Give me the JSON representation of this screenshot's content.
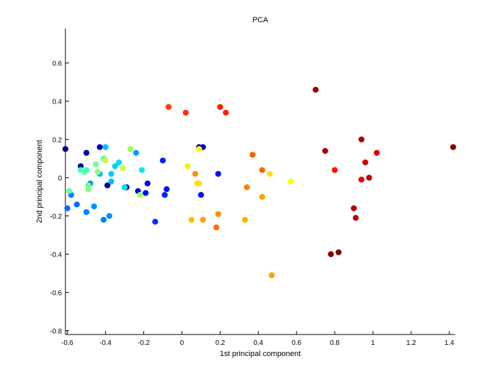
{
  "chart_data": {
    "type": "scatter",
    "title": "PCA",
    "xlabel": "1st principal component",
    "ylabel": "2nd principal component",
    "xlim": [
      -0.61,
      1.43
    ],
    "ylim": [
      -0.82,
      0.78
    ],
    "xticks": [
      -0.6,
      -0.4,
      -0.2,
      0,
      0.2,
      0.4,
      0.6,
      0.8,
      1,
      1.2,
      1.4
    ],
    "xtick_labels": [
      "-0.6",
      "-0.4",
      "-0.2",
      "0",
      "0.2",
      "0.4",
      "0.6",
      "0.8",
      "1",
      "1.2",
      "1.4"
    ],
    "yticks": [
      -0.8,
      -0.6,
      -0.4,
      -0.2,
      0,
      0.2,
      0.4,
      0.6
    ],
    "ytick_labels": [
      "-0.8",
      "-0.6",
      "-0.4",
      "-0.2",
      "0",
      "0.2",
      "0.4",
      "0.6"
    ],
    "grid": false,
    "legend": "none",
    "colormap": "jet",
    "points": [
      {
        "x": -0.61,
        "y": 0.15,
        "color": "#00008f"
      },
      {
        "x": -0.53,
        "y": 0.06,
        "color": "#00008f"
      },
      {
        "x": -0.5,
        "y": 0.13,
        "color": "#0000b0"
      },
      {
        "x": -0.43,
        "y": 0.16,
        "color": "#0000b0"
      },
      {
        "x": -0.39,
        "y": -0.04,
        "color": "#0000a0"
      },
      {
        "x": -0.29,
        "y": -0.05,
        "color": "#0000cc"
      },
      {
        "x": -0.23,
        "y": -0.07,
        "color": "#0000e0"
      },
      {
        "x": -0.19,
        "y": -0.08,
        "color": "#0010f0"
      },
      {
        "x": -0.18,
        "y": -0.03,
        "color": "#0000e0"
      },
      {
        "x": -0.14,
        "y": -0.23,
        "color": "#0030ff"
      },
      {
        "x": -0.1,
        "y": 0.09,
        "color": "#0020ff"
      },
      {
        "x": -0.08,
        "y": -0.06,
        "color": "#0010f0"
      },
      {
        "x": -0.09,
        "y": -0.09,
        "color": "#0020ff"
      },
      {
        "x": 0.09,
        "y": 0.16,
        "color": "#0000b0"
      },
      {
        "x": 0.11,
        "y": 0.16,
        "color": "#0000d0"
      },
      {
        "x": 0.1,
        "y": -0.09,
        "color": "#0010f0"
      },
      {
        "x": 0.19,
        "y": 0.02,
        "color": "#0010f0"
      },
      {
        "x": -0.6,
        "y": -0.16,
        "color": "#0070ff"
      },
      {
        "x": -0.58,
        "y": -0.09,
        "color": "#0080ff"
      },
      {
        "x": -0.55,
        "y": -0.14,
        "color": "#0070ff"
      },
      {
        "x": -0.5,
        "y": -0.18,
        "color": "#0080ff"
      },
      {
        "x": -0.48,
        "y": -0.03,
        "color": "#0090ff"
      },
      {
        "x": -0.46,
        "y": -0.15,
        "color": "#0090ff"
      },
      {
        "x": -0.41,
        "y": -0.22,
        "color": "#0080ff"
      },
      {
        "x": -0.38,
        "y": -0.2,
        "color": "#0090ff"
      },
      {
        "x": -0.43,
        "y": 0.02,
        "color": "#00b0ff"
      },
      {
        "x": -0.4,
        "y": 0.16,
        "color": "#00c0ff"
      },
      {
        "x": -0.37,
        "y": -0.02,
        "color": "#00c0ff"
      },
      {
        "x": -0.37,
        "y": 0.02,
        "color": "#00d0ff"
      },
      {
        "x": -0.35,
        "y": 0.06,
        "color": "#00d0ff"
      },
      {
        "x": -0.33,
        "y": 0.08,
        "color": "#00e0ff"
      },
      {
        "x": -0.3,
        "y": -0.05,
        "color": "#00e0f0"
      },
      {
        "x": -0.24,
        "y": 0.13,
        "color": "#00a0ff"
      },
      {
        "x": -0.21,
        "y": 0.04,
        "color": "#00e8f0"
      },
      {
        "x": -0.59,
        "y": -0.07,
        "color": "#60ffa0"
      },
      {
        "x": -0.53,
        "y": 0.04,
        "color": "#40ffc0"
      },
      {
        "x": -0.51,
        "y": 0.03,
        "color": "#60ffa0"
      },
      {
        "x": -0.5,
        "y": 0.04,
        "color": "#40ffc0"
      },
      {
        "x": -0.49,
        "y": -0.04,
        "color": "#60ffa0"
      },
      {
        "x": -0.49,
        "y": -0.06,
        "color": "#80ff80"
      },
      {
        "x": -0.45,
        "y": 0.07,
        "color": "#70ff90"
      },
      {
        "x": -0.44,
        "y": 0.03,
        "color": "#80ff80"
      },
      {
        "x": -0.41,
        "y": 0.1,
        "color": "#60ffa0"
      },
      {
        "x": -0.4,
        "y": 0.09,
        "color": "#c0ff40"
      },
      {
        "x": -0.31,
        "y": 0.05,
        "color": "#d0ff30"
      },
      {
        "x": -0.27,
        "y": 0.15,
        "color": "#a0ff60"
      },
      {
        "x": -0.22,
        "y": -0.09,
        "color": "#a0ff60"
      },
      {
        "x": 0.03,
        "y": 0.06,
        "color": "#f0f010"
      },
      {
        "x": 0.08,
        "y": -0.03,
        "color": "#ffe000"
      },
      {
        "x": 0.09,
        "y": -0.03,
        "color": "#ffe000"
      },
      {
        "x": 0.09,
        "y": 0.15,
        "color": "#ffff00"
      },
      {
        "x": 0.46,
        "y": 0.02,
        "color": "#ffe000"
      },
      {
        "x": 0.57,
        "y": -0.02,
        "color": "#ffff00"
      },
      {
        "x": 0.05,
        "y": -0.22,
        "color": "#ffc000"
      },
      {
        "x": 0.07,
        "y": 0.02,
        "color": "#ff9000"
      },
      {
        "x": 0.11,
        "y": -0.22,
        "color": "#ffa000"
      },
      {
        "x": 0.19,
        "y": -0.19,
        "color": "#ff9000"
      },
      {
        "x": 0.18,
        "y": -0.26,
        "color": "#ff7000"
      },
      {
        "x": 0.33,
        "y": -0.22,
        "color": "#ffb000"
      },
      {
        "x": 0.34,
        "y": -0.05,
        "color": "#ff8000"
      },
      {
        "x": 0.37,
        "y": 0.12,
        "color": "#ff6000"
      },
      {
        "x": 0.42,
        "y": 0.04,
        "color": "#ff6000"
      },
      {
        "x": 0.42,
        "y": -0.1,
        "color": "#ffa000"
      },
      {
        "x": 0.47,
        "y": -0.51,
        "color": "#ffa000"
      },
      {
        "x": -0.07,
        "y": 0.37,
        "color": "#ff4000"
      },
      {
        "x": 0.02,
        "y": 0.34,
        "color": "#ff3000"
      },
      {
        "x": 0.2,
        "y": 0.37,
        "color": "#ff2000"
      },
      {
        "x": 0.23,
        "y": 0.34,
        "color": "#ff2000"
      },
      {
        "x": 0.7,
        "y": 0.46,
        "color": "#a00000"
      },
      {
        "x": 0.75,
        "y": 0.14,
        "color": "#b00000"
      },
      {
        "x": 0.8,
        "y": 0.04,
        "color": "#ff1000"
      },
      {
        "x": 0.78,
        "y": -0.4,
        "color": "#800000"
      },
      {
        "x": 0.82,
        "y": -0.39,
        "color": "#800000"
      },
      {
        "x": 0.9,
        "y": -0.16,
        "color": "#b00000"
      },
      {
        "x": 0.91,
        "y": -0.21,
        "color": "#c00000"
      },
      {
        "x": 0.94,
        "y": 0.2,
        "color": "#b00000"
      },
      {
        "x": 0.94,
        "y": -0.01,
        "color": "#e00000"
      },
      {
        "x": 0.96,
        "y": 0.08,
        "color": "#d00000"
      },
      {
        "x": 0.98,
        "y": 0.0,
        "color": "#c00000"
      },
      {
        "x": 1.02,
        "y": 0.13,
        "color": "#e00000"
      },
      {
        "x": 1.42,
        "y": 0.16,
        "color": "#8b0000"
      }
    ]
  }
}
